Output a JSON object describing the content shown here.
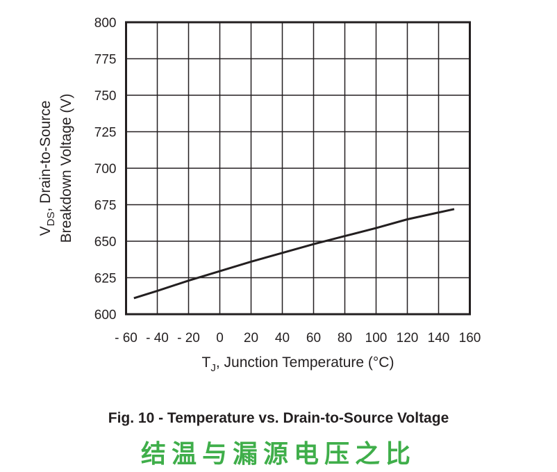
{
  "chart_data": {
    "type": "line",
    "title": "",
    "xlabel_main": "T",
    "xlabel_sub": "J",
    "xlabel_rest": ", Junction Temperature (°C)",
    "ylabel_line1_main": "V",
    "ylabel_line1_sub": "DS",
    "ylabel_line1_rest": ", Drain-to-Source",
    "ylabel_line2": "Breakdown Voltage (V)",
    "xlim": [
      -60,
      160
    ],
    "ylim": [
      600,
      800
    ],
    "x_ticks": [
      -60,
      -40,
      -20,
      0,
      20,
      40,
      60,
      80,
      100,
      120,
      140,
      160
    ],
    "x_tick_labels": [
      "- 60",
      "- 40",
      "- 20",
      "0",
      "20",
      "40",
      "60",
      "80",
      "100",
      "120",
      "140",
      "160"
    ],
    "y_ticks": [
      600,
      625,
      650,
      675,
      700,
      725,
      750,
      775,
      800
    ],
    "y_tick_labels": [
      "600",
      "625",
      "650",
      "675",
      "700",
      "725",
      "750",
      "775",
      "800"
    ],
    "grid": true,
    "series": [
      {
        "color": "#231f20",
        "x": [
          -55,
          -40,
          -20,
          0,
          20,
          40,
          60,
          80,
          100,
          120,
          150
        ],
        "y": [
          611,
          616,
          623,
          629.5,
          636,
          642,
          648,
          653.5,
          659,
          665,
          672
        ]
      }
    ]
  },
  "caption": "Fig. 10 - Temperature vs. Drain-to-Source Voltage",
  "caption_cn": "结温与漏源电压之比",
  "colors": {
    "caption_cn": "#3fae4a",
    "axis": "#231f20"
  }
}
